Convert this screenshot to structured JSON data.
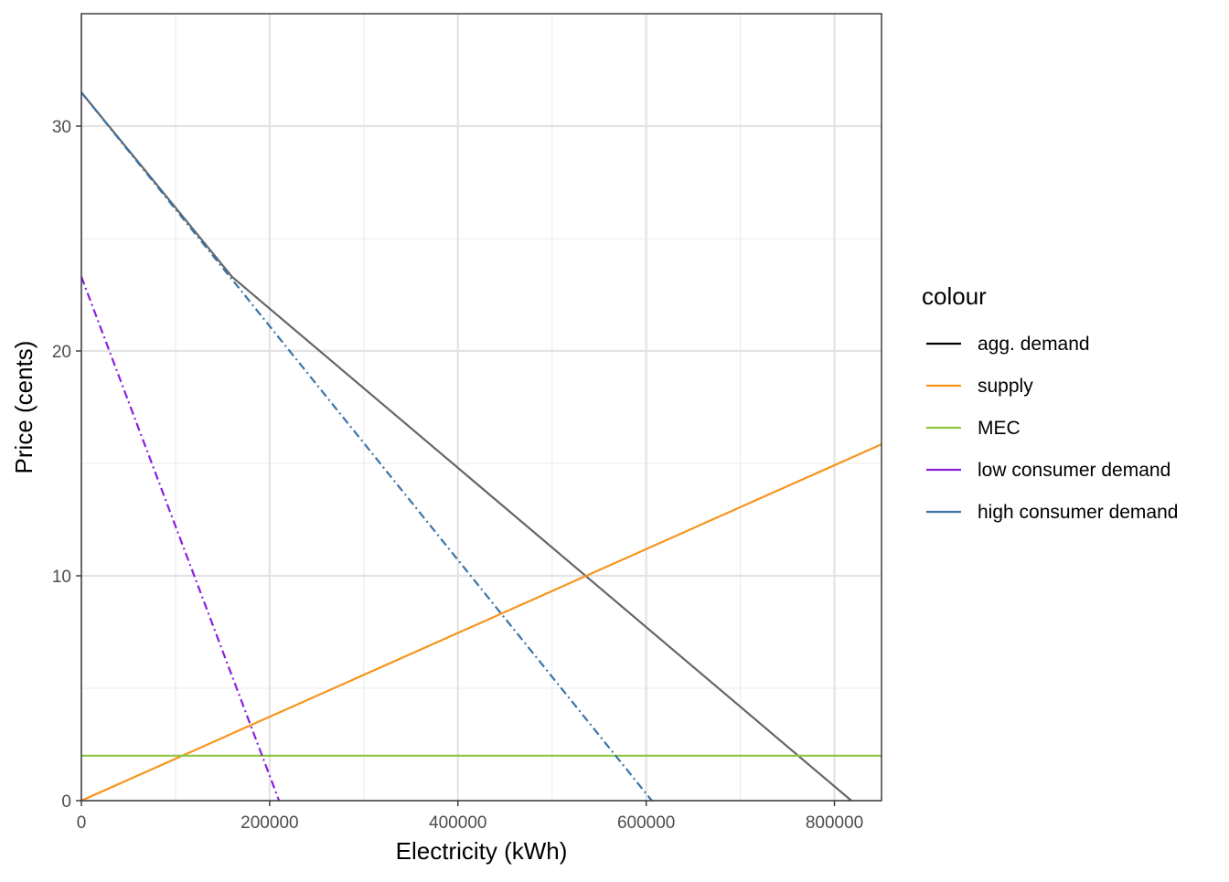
{
  "chart_data": {
    "type": "line",
    "title": "",
    "xlabel": "Electricity (kWh)",
    "ylabel": "Price (cents)",
    "xlim": [
      0,
      850000
    ],
    "ylim": [
      0,
      35
    ],
    "x_ticks": [
      0,
      200000,
      400000,
      600000,
      800000
    ],
    "x_tick_labels": [
      "0",
      "200000",
      "400000",
      "600000",
      "800000"
    ],
    "y_ticks": [
      0,
      10,
      20,
      30
    ],
    "y_tick_labels": [
      "0",
      "10",
      "20",
      "30"
    ],
    "x_minor_ticks": [
      100000,
      300000,
      500000,
      700000
    ],
    "y_minor_ticks": [
      5,
      15,
      25
    ],
    "grid": true,
    "legend": {
      "title": "colour",
      "position": "right"
    },
    "series": [
      {
        "name": "agg. demand",
        "legend_color": "#000000",
        "color": "#666666",
        "dash": "solid",
        "points": [
          [
            0,
            31.5
          ],
          [
            160000,
            23.3
          ],
          [
            818000,
            0
          ]
        ]
      },
      {
        "name": "supply",
        "legend_color": "#F7941D",
        "color": "#F7941D",
        "dash": "solid",
        "points": [
          [
            0,
            0
          ],
          [
            850000,
            15.85
          ]
        ]
      },
      {
        "name": "MEC",
        "legend_color": "#8DC63F",
        "color": "#8DC63F",
        "dash": "solid",
        "points": [
          [
            0,
            2
          ],
          [
            850000,
            2
          ]
        ]
      },
      {
        "name": "low consumer demand",
        "legend_color": "#8A1FE0",
        "color": "#8A1FE0",
        "dash": "dashdot",
        "points": [
          [
            0,
            23.3
          ],
          [
            210000,
            0
          ]
        ]
      },
      {
        "name": "high consumer demand",
        "legend_color": "#3C73A8",
        "color": "#3C73A8",
        "dash": "dashdot",
        "points": [
          [
            0,
            31.5
          ],
          [
            606000,
            0
          ]
        ]
      }
    ]
  }
}
